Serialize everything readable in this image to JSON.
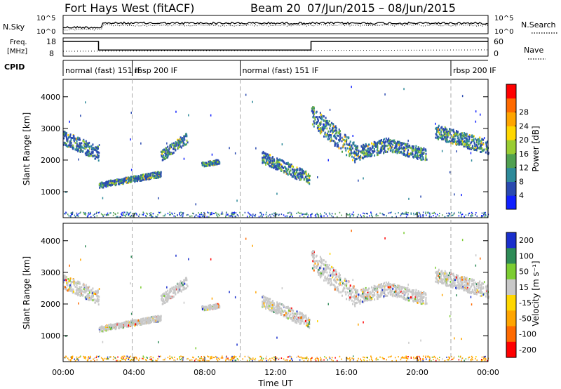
{
  "header": {
    "station": "Fort Hays West (fitACF)",
    "beam": "Beam 20",
    "dates": "07/Jun/2015 – 08/Jun/2015"
  },
  "chart_data": [
    {
      "type": "line",
      "name": "noise",
      "left_label": "N.Sky",
      "right_label": "N.Search",
      "left_ticks": [
        "10^5",
        "10^0"
      ],
      "right_ticks": [
        "10^5",
        "10^0"
      ]
    },
    {
      "type": "line",
      "name": "frequency",
      "left_label_1": "Freq.",
      "left_label_2": "[MHz]",
      "right_label": "Nave",
      "left_ticks": [
        18,
        8
      ],
      "right_ticks": [
        60,
        0
      ],
      "freq_steps": [
        {
          "t_start": 0.0,
          "t_end": 2.0,
          "value": 17.5
        },
        {
          "t_start": 2.0,
          "t_end": 14.0,
          "value": 11.0
        },
        {
          "t_start": 14.0,
          "t_end": 24.0,
          "value": 17.5
        }
      ]
    },
    {
      "type": "table",
      "name": "cpid",
      "label": "CPID",
      "modes": [
        {
          "t": 0.0,
          "text": "normal (fast) 151 IF"
        },
        {
          "t": 3.9,
          "text": "rbsp 200 IF"
        },
        {
          "t": 10.0,
          "text": "normal (fast) 151 IF"
        },
        {
          "t": 21.9,
          "text": "rbsp 200 IF"
        }
      ]
    },
    {
      "type": "heatmap",
      "name": "power",
      "ylabel": "Slant Range [km]",
      "yticks": [
        1000,
        2000,
        3000,
        4000
      ],
      "ylim": [
        180,
        4550
      ],
      "xlim": [
        0,
        24
      ],
      "colorbar_label": "Power [dB]",
      "colorbar_ticks": [
        4,
        8,
        12,
        16,
        20,
        24,
        28
      ],
      "colorbar_colors": [
        "#1020ff",
        "#2a4ab0",
        "#2e8a9a",
        "#50a050",
        "#9acd32",
        "#ffd700",
        "#ffa500",
        "#ff6a00",
        "#ff0000"
      ],
      "echo_bands": [
        {
          "t_start": 0.0,
          "t_end": 2.0,
          "r_start": 2700,
          "r_end": 2200,
          "width": 450
        },
        {
          "t_start": 2.0,
          "t_end": 5.5,
          "r_start": 1200,
          "r_end": 1550,
          "width": 180
        },
        {
          "t_start": 5.5,
          "t_end": 7.0,
          "r_start": 2100,
          "r_end": 2700,
          "width": 350
        },
        {
          "t_start": 7.8,
          "t_end": 8.8,
          "r_start": 1850,
          "r_end": 1950,
          "width": 140
        },
        {
          "t_start": 11.2,
          "t_end": 13.9,
          "r_start": 2100,
          "r_end": 1400,
          "width": 380
        },
        {
          "t_start": 14.0,
          "t_end": 16.5,
          "r_start": 3400,
          "r_end": 2200,
          "width": 650
        },
        {
          "t_start": 16.5,
          "t_end": 18.5,
          "r_start": 2200,
          "r_end": 2500,
          "width": 450
        },
        {
          "t_start": 18.5,
          "t_end": 20.5,
          "r_start": 2450,
          "r_end": 2150,
          "width": 400
        },
        {
          "t_start": 21.0,
          "t_end": 24.0,
          "r_start": 2900,
          "r_end": 2400,
          "width": 450
        }
      ]
    },
    {
      "type": "heatmap",
      "name": "velocity",
      "ylabel": "Slant Range [km]",
      "yticks": [
        1000,
        2000,
        3000,
        4000
      ],
      "ylim": [
        180,
        4550
      ],
      "xlim": [
        0,
        24
      ],
      "xlabel": "Time UT",
      "xticks": [
        "00:00",
        "04:00",
        "08:00",
        "12:00",
        "16:00",
        "20:00",
        "00:00"
      ],
      "xtick_values": [
        0,
        4,
        8,
        12,
        16,
        20,
        24
      ],
      "colorbar_label": "Velocity [m s⁻¹]",
      "colorbar_ticks": [
        200,
        100,
        50,
        15,
        -15,
        -50,
        -100,
        -200
      ],
      "colorbar_colors": [
        "#1a2fcc",
        "#2e8b57",
        "#7ccd32",
        "#c8c8c8",
        "#ffd700",
        "#ffa500",
        "#ff6a00",
        "#ff0000"
      ]
    }
  ]
}
